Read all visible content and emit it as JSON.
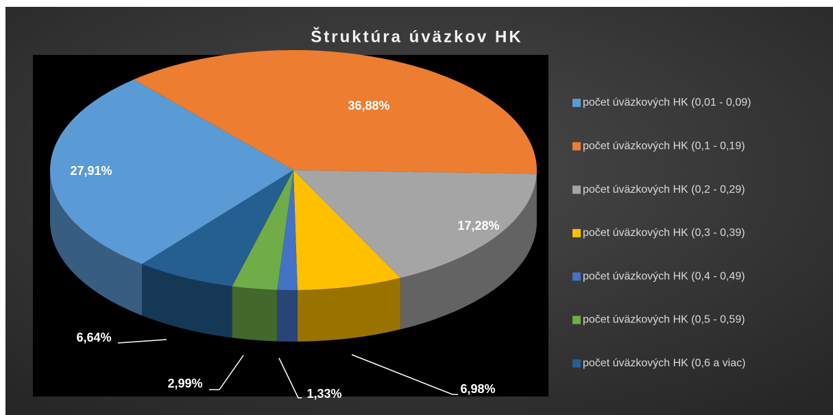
{
  "chart_data": {
    "type": "pie",
    "title": "Štruktúra úväzkov HK",
    "categories": [
      "počet úväzkových HK (0,01 - 0,09)",
      "počet úväzkových HK (0,1 - 0,19)",
      "počet úväzkových HK (0,2 - 0,29)",
      "počet úväzkových HK (0,3 - 0,39)",
      "počet úväzkových HK (0,4 - 0,49)",
      "počet úväzkových HK (0,5 - 0,59)",
      "počet úväzkových HK (0,6 a viac)"
    ],
    "values": [
      27.91,
      36.88,
      17.28,
      6.98,
      1.33,
      2.99,
      6.64
    ],
    "value_labels": [
      "27,91%",
      "36,88%",
      "17,28%",
      "6,98%",
      "1,33%",
      "2,99%",
      "6,64%"
    ],
    "colors": [
      "#5b9bd5",
      "#ed7d31",
      "#a5a5a5",
      "#ffc000",
      "#4472c4",
      "#70ad47",
      "#255e91"
    ],
    "legend": "right"
  }
}
